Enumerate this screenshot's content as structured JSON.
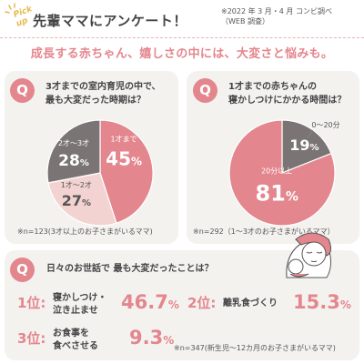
{
  "header": {
    "badge": "Pick up",
    "title": "先輩ママにアンケート！",
    "source_line1": "※2022 年 3 月・4 月 コンビ調べ",
    "source_line2": "（WEB 調査）"
  },
  "headline": "成長する赤ちゃん、嬉しさの中には、大変さと悩みも。",
  "q_label": "Q",
  "q1": {
    "line1": "3才までの室内育児の中で、",
    "line2": "最も大変だった時期は？",
    "note": "※n=123(3才以上のお子さまがいるママ)"
  },
  "q2": {
    "line1": "1才までの赤ちゃんの",
    "line2": "寝かしつけにかかる時間は？",
    "note": "※n=292（1〜3才のお子さまがいるママ）"
  },
  "q3": {
    "question": "日々のお世話で 最も大変だったことは？",
    "note": "※n=347(新生児〜12カ月のお子さまがいるママ)",
    "ranks": [
      {
        "rank": "1位:",
        "line1": "寝かしつけ・",
        "line2": "泣き止ませ",
        "value": "46.7",
        "unit": "%"
      },
      {
        "rank": "2位:",
        "line1": "離乳食づくり",
        "line2": "",
        "value": "15.3",
        "unit": "%"
      },
      {
        "rank": "3位:",
        "line1": "お食事を",
        "line2": "食べさせる",
        "value": "9.3",
        "unit": "%"
      }
    ]
  },
  "chart_data": [
    {
      "type": "pie",
      "slices": [
        {
          "label": "1才まで",
          "value": 45,
          "display": "45",
          "color": "#e3868e"
        },
        {
          "label": "1才〜2才",
          "value": 27,
          "display": "27",
          "color": "#f3d3d1"
        },
        {
          "label": "2才〜3才",
          "value": 28,
          "display": "28",
          "color": "#7a7474"
        }
      ],
      "unit": "%"
    },
    {
      "type": "pie",
      "slices": [
        {
          "label": "0〜20分",
          "value": 19,
          "display": "19",
          "color": "#7a7474"
        },
        {
          "label": "20分以上",
          "value": 81,
          "display": "81",
          "color": "#e3868e"
        }
      ],
      "unit": "%"
    }
  ]
}
